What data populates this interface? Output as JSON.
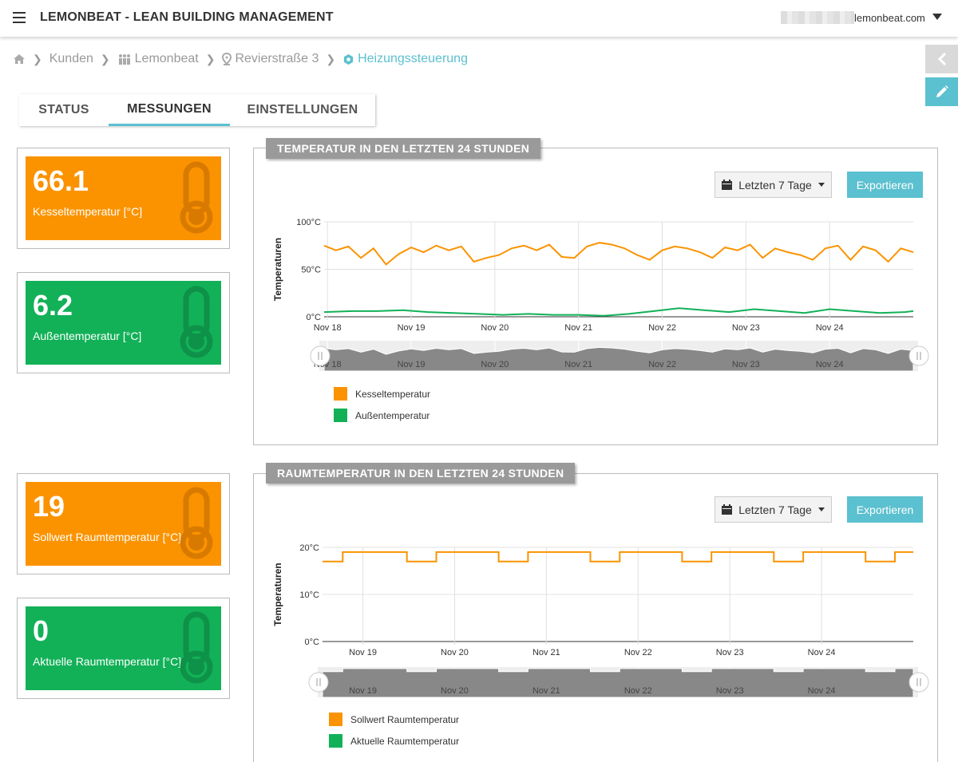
{
  "app": {
    "title": "LEMONBEAT - LEAN BUILDING MANAGEMENT",
    "user": "lemonbeat.com"
  },
  "breadcrumb": [
    {
      "label": "Kunden",
      "icon": "home-icon"
    },
    {
      "label": "Lemonbeat",
      "icon": "people-icon"
    },
    {
      "label": "Revierstraße 3",
      "icon": "map-pin-icon"
    },
    {
      "label": "Heizungssteuerung",
      "icon": "gear-icon"
    }
  ],
  "tabs": [
    {
      "label": "STATUS"
    },
    {
      "label": "MESSUNGEN",
      "active": true
    },
    {
      "label": "EINSTELLUNGEN"
    }
  ],
  "kpis": [
    {
      "value": "66.1",
      "label": "Kesseltemperatur [°C]",
      "color": "#fb9300"
    },
    {
      "value": "6.2",
      "label": "Außentemperatur [°C]",
      "color": "#12b158"
    },
    {
      "value": "19",
      "label": "Sollwert Raumtemperatur [°C]",
      "color": "#fb9300"
    },
    {
      "value": "0",
      "label": "Aktuelle Raumtemperatur [°C]",
      "color": "#12b158"
    }
  ],
  "colors": {
    "accent": "#5bc0cf",
    "orange": "#fb9300",
    "green": "#12b158",
    "navigator": "#888888"
  },
  "panels": [
    {
      "title": "TEMPERATUR IN DEN LETZTEN 24 STUNDEN",
      "range": "Letzten 7 Tage",
      "export": "Exportieren"
    },
    {
      "title": "RAUMTEMPERATUR IN DEN LETZTEN 24 STUNDEN",
      "range": "Letzten 7 Tage",
      "export": "Exportieren"
    }
  ],
  "chart_data": [
    {
      "type": "line",
      "title": "TEMPERATUR IN DEN LETZTEN 24 STUNDEN",
      "ylabel": "Temperaturen",
      "xlabel": "",
      "ylim": [
        0,
        100
      ],
      "yticks": [
        "0°C",
        "50°C",
        "100°C"
      ],
      "x_ticks": [
        "Nov 18",
        "Nov 19",
        "Nov 20",
        "Nov 21",
        "Nov 22",
        "Nov 23",
        "Nov 24"
      ],
      "x_range_days": [
        17.96,
        25.0
      ],
      "grid": true,
      "legend": "bottom-left",
      "series": [
        {
          "name": "Kesseltemperatur",
          "color": "#fb9300",
          "x": [
            17.96,
            18.1,
            18.25,
            18.4,
            18.55,
            18.7,
            18.85,
            19.0,
            19.15,
            19.3,
            19.45,
            19.6,
            19.75,
            19.9,
            20.05,
            20.2,
            20.35,
            20.5,
            20.65,
            20.8,
            20.95,
            21.1,
            21.25,
            21.4,
            21.55,
            21.7,
            21.85,
            22.0,
            22.15,
            22.3,
            22.45,
            22.6,
            22.75,
            22.9,
            23.05,
            23.2,
            23.35,
            23.5,
            23.65,
            23.8,
            23.95,
            24.1,
            24.25,
            24.4,
            24.55,
            24.7,
            24.85,
            25.0
          ],
          "y": [
            75,
            70,
            74,
            62,
            72,
            55,
            66,
            73,
            68,
            75,
            70,
            74,
            58,
            62,
            65,
            72,
            75,
            70,
            76,
            63,
            62,
            74,
            78,
            76,
            72,
            65,
            60,
            70,
            74,
            72,
            68,
            62,
            73,
            70,
            76,
            62,
            72,
            68,
            65,
            60,
            72,
            75,
            60,
            74,
            70,
            58,
            72,
            68
          ]
        },
        {
          "name": "Außentemperatur",
          "color": "#12b158",
          "x": [
            17.96,
            18.3,
            18.6,
            18.9,
            19.2,
            19.5,
            19.8,
            20.1,
            20.4,
            20.7,
            21.0,
            21.3,
            21.6,
            21.9,
            22.2,
            22.5,
            22.8,
            23.1,
            23.4,
            23.7,
            24.0,
            24.3,
            24.6,
            24.9,
            25.0
          ],
          "y": [
            5,
            6,
            6,
            7,
            5,
            4,
            3,
            2,
            3,
            2,
            2,
            1,
            3,
            6,
            9,
            7,
            5,
            8,
            6,
            4,
            8,
            6,
            4,
            5,
            6
          ]
        }
      ]
    },
    {
      "type": "line",
      "title": "RAUMTEMPERATUR IN DEN LETZTEN 24 STUNDEN",
      "ylabel": "Temperaturen",
      "xlabel": "",
      "ylim": [
        0,
        20
      ],
      "yticks": [
        "0°C",
        "10°C",
        "20°C"
      ],
      "x_ticks": [
        "Nov 19",
        "Nov 20",
        "Nov 21",
        "Nov 22",
        "Nov 23",
        "Nov 24"
      ],
      "x_range_days": [
        18.56,
        25.0
      ],
      "grid": true,
      "legend": "bottom-left",
      "series": [
        {
          "name": "Sollwert Raumtemperatur",
          "color": "#fb9300",
          "x": [
            18.56,
            18.78,
            18.78,
            19.48,
            19.48,
            19.8,
            19.8,
            20.48,
            20.48,
            20.8,
            20.8,
            21.48,
            21.48,
            21.8,
            21.8,
            22.48,
            22.48,
            22.8,
            22.8,
            23.48,
            23.48,
            23.8,
            23.8,
            24.48,
            24.48,
            24.8,
            24.8,
            25.0
          ],
          "y": [
            17,
            17,
            19,
            19,
            17,
            17,
            19,
            19,
            17,
            17,
            19,
            19,
            17,
            17,
            19,
            19,
            17,
            17,
            19,
            19,
            17,
            17,
            19,
            19,
            17,
            17,
            19,
            19
          ]
        },
        {
          "name": "Aktuelle Raumtemperatur",
          "color": "#12b158",
          "x": [],
          "y": []
        }
      ]
    }
  ]
}
